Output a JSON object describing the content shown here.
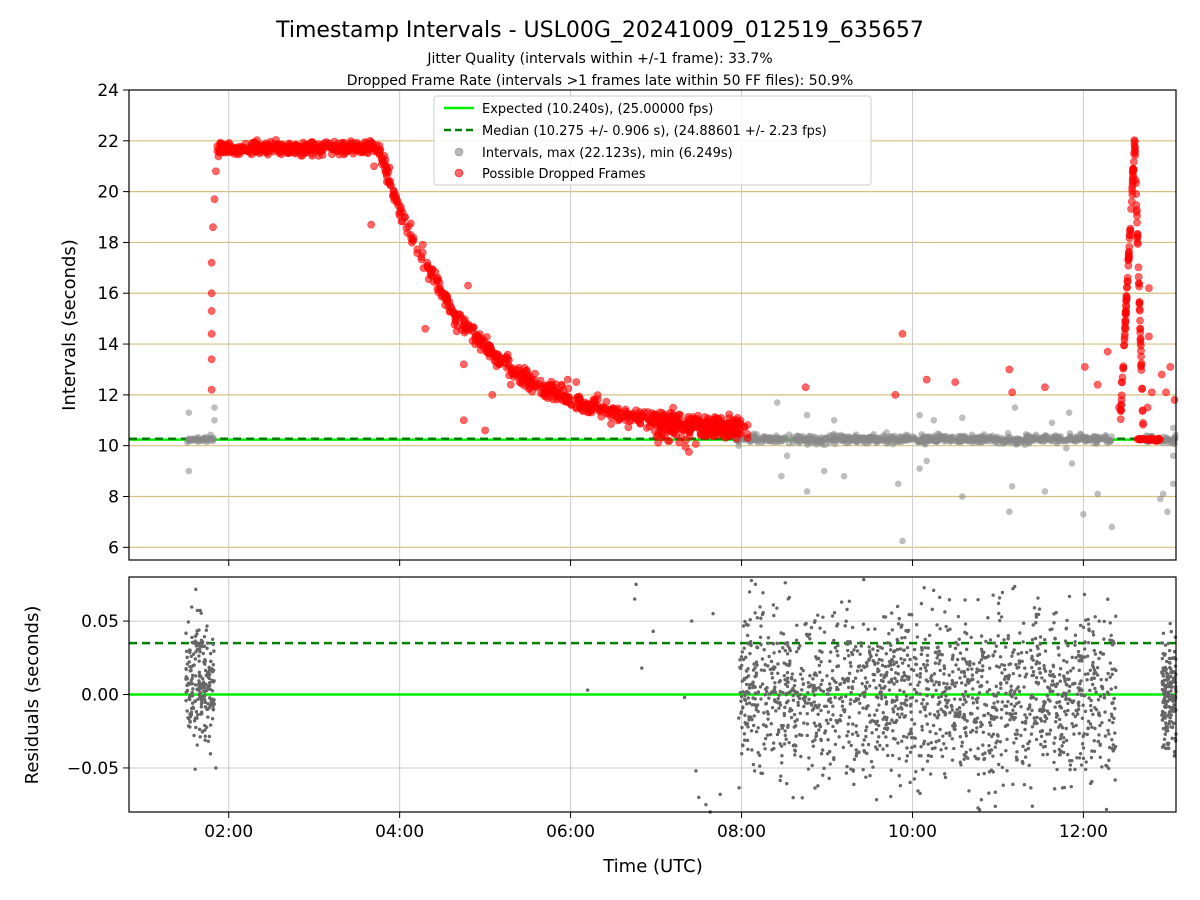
{
  "chart_data": [
    {
      "type": "scatter",
      "title": "Timestamp Intervals - USL00G_20241009_012519_635657",
      "subtitle": "Jitter Quality (intervals within +/-1 frame): 33.7%",
      "subtitle2": "Dropped Frame Rate (intervals >1 frames late within 50 FF files): 50.9%",
      "xlabel": "",
      "ylabel": "Intervals (seconds)",
      "xlim": [
        "00:50",
        "13:05"
      ],
      "ylim": [
        5.5,
        24
      ],
      "y_ticks": [
        "6",
        "8",
        "10",
        "12",
        "14",
        "16",
        "18",
        "20",
        "22",
        "24"
      ],
      "x_ticks": [
        "02:00",
        "04:00",
        "06:00",
        "08:00",
        "10:00",
        "12:00"
      ],
      "grid": "horizontal and vertical",
      "legend_position": "top-center",
      "colors": {
        "expected": "#00ee00",
        "median": "#008000",
        "intervals": "#888888",
        "dropped": "#ff0000",
        "hgrid": "#d4c080"
      },
      "series": [
        {
          "name": "Expected (10.240s), (25.00000 fps)",
          "kind": "hline",
          "y": 10.24
        },
        {
          "name": "Median (10.275 +/- 0.906 s), (24.88601 +/- 2.23 fps)",
          "kind": "hline-dashed",
          "y": 10.275
        },
        {
          "name": "Intervals, max (22.123s), min (6.249s)",
          "kind": "scatter",
          "points": [
            [
              "01:32",
              11.3
            ],
            [
              "01:32",
              9.0
            ],
            [
              "01:50",
              11.0
            ],
            [
              "01:50",
              11.5
            ],
            [
              "07:58",
              10.0
            ],
            [
              "08:25",
              11.7
            ],
            [
              "08:28",
              8.8
            ],
            [
              "08:32",
              9.6
            ],
            [
              "08:46",
              11.2
            ],
            [
              "08:46",
              8.2
            ],
            [
              "08:58",
              9.0
            ],
            [
              "09:05",
              11.0
            ],
            [
              "09:12",
              8.8
            ],
            [
              "09:50",
              8.5
            ],
            [
              "09:53",
              6.25
            ],
            [
              "10:05",
              9.1
            ],
            [
              "10:05",
              11.2
            ],
            [
              "10:10",
              9.4
            ],
            [
              "10:15",
              11.0
            ],
            [
              "10:35",
              8.0
            ],
            [
              "10:35",
              11.1
            ],
            [
              "11:08",
              7.4
            ],
            [
              "11:10",
              8.4
            ],
            [
              "11:12",
              11.5
            ],
            [
              "11:33",
              8.2
            ],
            [
              "11:38",
              10.9
            ],
            [
              "11:48",
              9.9
            ],
            [
              "11:50",
              11.3
            ],
            [
              "11:52",
              9.3
            ],
            [
              "12:00",
              7.3
            ],
            [
              "12:10",
              8.1
            ],
            [
              "12:20",
              6.8
            ],
            [
              "12:54",
              7.9
            ],
            [
              "12:56",
              8.1
            ],
            [
              "12:59",
              7.4
            ],
            [
              "13:03",
              8.5
            ],
            [
              "13:03",
              9.6
            ],
            [
              "13:03",
              10.7
            ]
          ]
        },
        {
          "name": "Possible Dropped Frames",
          "kind": "scatter",
          "points": [
            [
              "01:48",
              12.2
            ],
            [
              "01:48",
              13.4
            ],
            [
              "01:48",
              14.4
            ],
            [
              "01:48",
              15.3
            ],
            [
              "01:48",
              16.0
            ],
            [
              "01:48",
              17.2
            ],
            [
              "01:49",
              18.6
            ],
            [
              "01:50",
              19.7
            ],
            [
              "01:51",
              20.8
            ],
            [
              "01:52",
              21.6
            ],
            [
              "03:40",
              18.7
            ],
            [
              "03:42",
              21.0
            ],
            [
              "04:18",
              14.6
            ],
            [
              "04:38",
              15.2
            ],
            [
              "04:40",
              14.5
            ],
            [
              "04:45",
              11.0
            ],
            [
              "04:45",
              13.2
            ],
            [
              "04:48",
              16.3
            ],
            [
              "04:58",
              14.2
            ],
            [
              "05:00",
              10.6
            ],
            [
              "05:05",
              12.0
            ],
            [
              "05:12",
              13.3
            ],
            [
              "05:18",
              12.4
            ],
            [
              "05:25",
              12.5
            ],
            [
              "05:30",
              12.7
            ],
            [
              "05:58",
              12.6
            ],
            [
              "06:04",
              12.5
            ],
            [
              "06:08",
              11.4
            ],
            [
              "07:10",
              11.3
            ],
            [
              "08:45",
              12.3
            ],
            [
              "09:48",
              12.0
            ],
            [
              "09:53",
              14.4
            ],
            [
              "10:10",
              12.6
            ],
            [
              "10:30",
              12.5
            ],
            [
              "11:08",
              13.0
            ],
            [
              "11:10",
              12.1
            ],
            [
              "11:33",
              12.3
            ],
            [
              "12:01",
              13.1
            ],
            [
              "12:10",
              12.4
            ],
            [
              "12:17",
              13.7
            ],
            [
              "12:25",
              11.5
            ],
            [
              "12:27",
              12.5
            ],
            [
              "12:45",
              11.5
            ],
            [
              "12:46",
              14.3
            ],
            [
              "12:46",
              16.2
            ],
            [
              "12:48",
              12.1
            ],
            [
              "12:55",
              12.8
            ],
            [
              "12:58",
              12.1
            ],
            [
              "13:01",
              13.1
            ],
            [
              "13:04",
              11.8
            ]
          ]
        }
      ],
      "legend": [
        "Expected (10.240s), (25.00000 fps)",
        "Median (10.275 +/- 0.906 s), (24.88601 +/- 2.23 fps)",
        "Intervals, max (22.123s), min (6.249s)",
        "Possible Dropped Frames"
      ]
    },
    {
      "type": "scatter",
      "xlabel": "Time (UTC)",
      "ylabel": "Residuals (seconds)",
      "xlim": [
        "00:50",
        "13:05"
      ],
      "ylim": [
        -0.08,
        0.08
      ],
      "y_ticks": [
        "−0.05",
        "0.00",
        "0.05"
      ],
      "y_tick_values": [
        -0.05,
        0.0,
        0.05
      ],
      "x_ticks": [
        "02:00",
        "04:00",
        "06:00",
        "08:00",
        "10:00",
        "12:00"
      ],
      "grid": "horizontal and vertical",
      "series": [
        {
          "kind": "hline",
          "y": 0.0
        },
        {
          "kind": "hline-dashed",
          "y": 0.035
        },
        {
          "kind": "scatter",
          "points": [
            [
              "01:51",
              -0.05
            ],
            [
              "06:12",
              0.003
            ],
            [
              "06:45",
              0.065
            ],
            [
              "06:46",
              0.075
            ],
            [
              "06:50",
              0.018
            ],
            [
              "06:58",
              0.043
            ],
            [
              "07:20",
              -0.002
            ],
            [
              "07:25",
              0.05
            ],
            [
              "07:28",
              -0.052
            ],
            [
              "07:30",
              -0.07
            ],
            [
              "07:35",
              -0.075
            ],
            [
              "07:38",
              -0.08
            ],
            [
              "07:40",
              0.055
            ],
            [
              "07:45",
              -0.068
            ]
          ]
        }
      ]
    }
  ]
}
